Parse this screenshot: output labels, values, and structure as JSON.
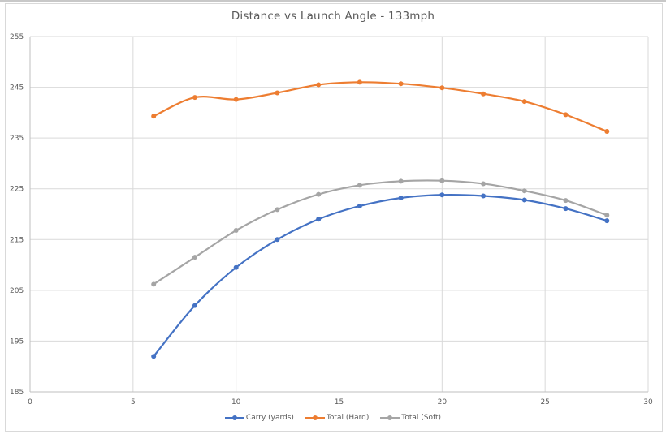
{
  "chart_data": {
    "type": "line",
    "title": "Distance vs Launch Angle - 133mph",
    "xlabel": "",
    "ylabel": "",
    "xlim": [
      0,
      30
    ],
    "ylim": [
      185,
      255
    ],
    "x_ticks": [
      0,
      5,
      10,
      15,
      20,
      25,
      30
    ],
    "y_ticks": [
      185,
      195,
      205,
      215,
      225,
      235,
      245,
      255
    ],
    "grid": true,
    "legend_position": "bottom",
    "smooth": true,
    "x": [
      6,
      8,
      10,
      12,
      14,
      16,
      18,
      20,
      22,
      24,
      26,
      28
    ],
    "series": [
      {
        "name": "Carry (yards)",
        "color": "#4472C4",
        "values": [
          192.0,
          202.0,
          209.5,
          215.0,
          219.0,
          221.6,
          223.2,
          223.8,
          223.6,
          222.8,
          221.1,
          218.7
        ]
      },
      {
        "name": "Total (Hard)",
        "color": "#ED7D31",
        "values": [
          239.3,
          243.0,
          242.6,
          243.9,
          245.5,
          246.0,
          245.7,
          244.9,
          243.7,
          242.2,
          239.6,
          236.3
        ]
      },
      {
        "name": "Total (Soft)",
        "color": "#A5A5A5",
        "values": [
          206.2,
          211.5,
          216.8,
          220.9,
          223.9,
          225.7,
          226.5,
          226.6,
          226.0,
          224.6,
          222.7,
          219.8
        ]
      }
    ]
  }
}
